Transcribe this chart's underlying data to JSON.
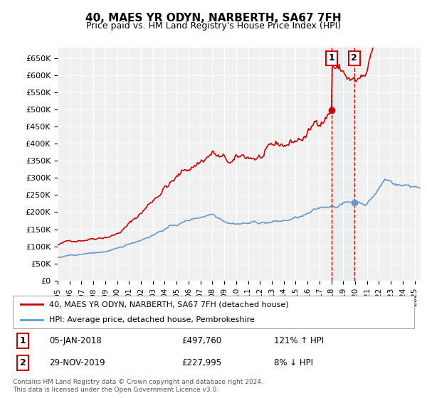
{
  "title": "40, MAES YR ODYN, NARBERTH, SA67 7FH",
  "subtitle": "Price paid vs. HM Land Registry's House Price Index (HPI)",
  "ylabel_ticks": [
    "£0",
    "£50K",
    "£100K",
    "£150K",
    "£200K",
    "£250K",
    "£300K",
    "£350K",
    "£400K",
    "£450K",
    "£500K",
    "£550K",
    "£600K",
    "£650K"
  ],
  "ytick_values": [
    0,
    50000,
    100000,
    150000,
    200000,
    250000,
    300000,
    350000,
    400000,
    450000,
    500000,
    550000,
    600000,
    650000
  ],
  "ylim": [
    0,
    680000
  ],
  "xlim_start": 1995.0,
  "xlim_end": 2025.5,
  "background_color": "#ffffff",
  "plot_bg_color": "#f0f0f0",
  "grid_color": "#ffffff",
  "red_line_color": "#cc0000",
  "blue_line_color": "#6699cc",
  "vline_color": "#cc0000",
  "point1_x": 2018.04,
  "point1_y": 497760,
  "point2_x": 2019.92,
  "point2_y": 227995,
  "legend_line1": "40, MAES YR ODYN, NARBERTH, SA67 7FH (detached house)",
  "legend_line2": "HPI: Average price, detached house, Pembrokeshire",
  "footnote": "Contains HM Land Registry data © Crown copyright and database right 2024.\nThis data is licensed under the Open Government Licence v3.0.",
  "row1_date": "05-JAN-2018",
  "row1_price": "£497,760",
  "row1_hpi": "121% ↑ HPI",
  "row2_date": "29-NOV-2019",
  "row2_price": "£227,995",
  "row2_hpi": "8% ↓ HPI"
}
